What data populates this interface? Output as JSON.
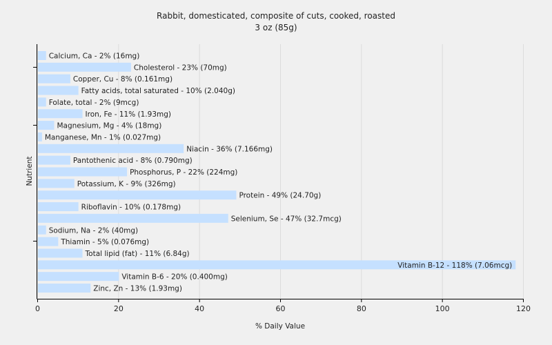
{
  "chart_data": {
    "type": "bar",
    "orientation": "horizontal",
    "title": "Rabbit, domesticated, composite of cuts, cooked, roasted",
    "subtitle": "3 oz (85g)",
    "xlabel": "% Daily Value",
    "ylabel": "Nutrient",
    "xlim": [
      0,
      120
    ],
    "xticks": [
      0,
      20,
      40,
      60,
      80,
      100,
      120
    ],
    "grid": true,
    "bar_color": "#c5e0ff",
    "categories": [
      "Calcium, Ca - 2% (16mg)",
      "Cholesterol - 23% (70mg)",
      "Copper, Cu - 8% (0.161mg)",
      "Fatty acids, total saturated - 10% (2.040g)",
      "Folate, total - 2% (9mcg)",
      "Iron, Fe - 11% (1.93mg)",
      "Magnesium, Mg - 4% (18mg)",
      "Manganese, Mn - 1% (0.027mg)",
      "Niacin - 36% (7.166mg)",
      "Pantothenic acid - 8% (0.790mg)",
      "Phosphorus, P - 22% (224mg)",
      "Potassium, K - 9% (326mg)",
      "Protein - 49% (24.70g)",
      "Riboflavin - 10% (0.178mg)",
      "Selenium, Se - 47% (32.7mcg)",
      "Sodium, Na - 2% (40mg)",
      "Thiamin - 5% (0.076mg)",
      "Total lipid (fat) - 11% (6.84g)",
      "Vitamin B-12 - 118% (7.06mcg)",
      "Vitamin B-6 - 20% (0.400mg)",
      "Zinc, Zn - 13% (1.93mg)"
    ],
    "values": [
      2,
      23,
      8,
      10,
      2,
      11,
      4,
      1,
      36,
      8,
      22,
      9,
      49,
      10,
      47,
      2,
      5,
      11,
      118,
      20,
      13
    ]
  }
}
